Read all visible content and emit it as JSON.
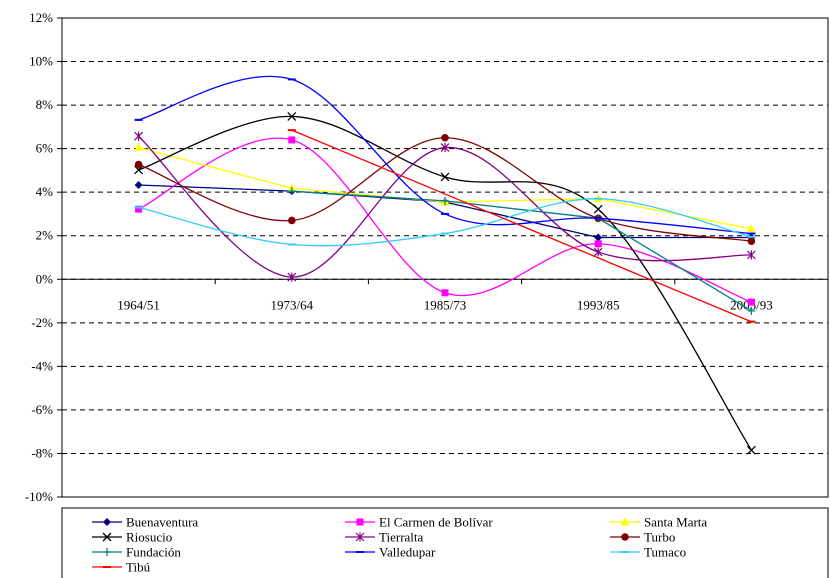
{
  "chart_data": {
    "type": "line",
    "categories": [
      "1964/51",
      "1973/64",
      "1985/73",
      "1993/85",
      "2005/93"
    ],
    "ylim": [
      -0.1,
      0.12
    ],
    "yticks": [
      -0.1,
      -0.08,
      -0.06,
      -0.04,
      -0.02,
      0.0,
      0.02,
      0.04,
      0.06,
      0.08,
      0.1,
      0.12
    ],
    "ytick_labels": [
      "-10%",
      "-8%",
      "-6%",
      "-4%",
      "-2%",
      "0%",
      "2%",
      "4%",
      "6%",
      "8%",
      "10%",
      "12%"
    ],
    "grid": "dashed horizontal",
    "legend_position": "bottom",
    "series": [
      {
        "name": "Buenaventura",
        "color": "#000080",
        "marker": "diamond",
        "smooth": false,
        "values": [
          0.0433,
          0.0405,
          0.0355,
          0.0192,
          0.0192
        ]
      },
      {
        "name": "El Carmen de Bolívar",
        "color": "#FF00FF",
        "marker": "square",
        "smooth": true,
        "values": [
          0.0322,
          0.064,
          -0.0062,
          0.0163,
          -0.0105
        ]
      },
      {
        "name": "Santa Marta",
        "color": "#FFFF00",
        "marker": "triangle",
        "smooth": false,
        "values": [
          0.0605,
          0.0418,
          0.0355,
          0.037,
          0.0232
        ]
      },
      {
        "name": "Riosucio",
        "color": "#000000",
        "marker": "x",
        "smooth": true,
        "values": [
          0.0502,
          0.0748,
          0.047,
          0.0322,
          -0.0785
        ]
      },
      {
        "name": "Tierralta",
        "color": "#800080",
        "marker": "star",
        "smooth": true,
        "values": [
          0.0657,
          0.001,
          0.0605,
          0.0125,
          0.0112
        ]
      },
      {
        "name": "Turbo",
        "color": "#800000",
        "marker": "circle",
        "smooth": true,
        "values": [
          0.0527,
          0.027,
          0.065,
          0.028,
          0.0175
        ]
      },
      {
        "name": "Fundación",
        "color": "#008080",
        "marker": "plus",
        "smooth": false,
        "values": [
          null,
          0.0405,
          0.036,
          0.028,
          -0.0145
        ]
      },
      {
        "name": "Valledupar",
        "color": "#0000FF",
        "marker": "dash",
        "smooth": true,
        "values": [
          0.0732,
          0.0918,
          0.03,
          0.028,
          0.021
        ]
      },
      {
        "name": "Tumaco",
        "color": "#33CCFF",
        "marker": "dash",
        "smooth": true,
        "values": [
          0.033,
          0.016,
          0.021,
          0.037,
          0.0195
        ]
      },
      {
        "name": "Tibú",
        "color": "#FF0000",
        "marker": "dash",
        "smooth": false,
        "values": [
          null,
          0.0685,
          null,
          null,
          -0.0195
        ]
      }
    ]
  }
}
